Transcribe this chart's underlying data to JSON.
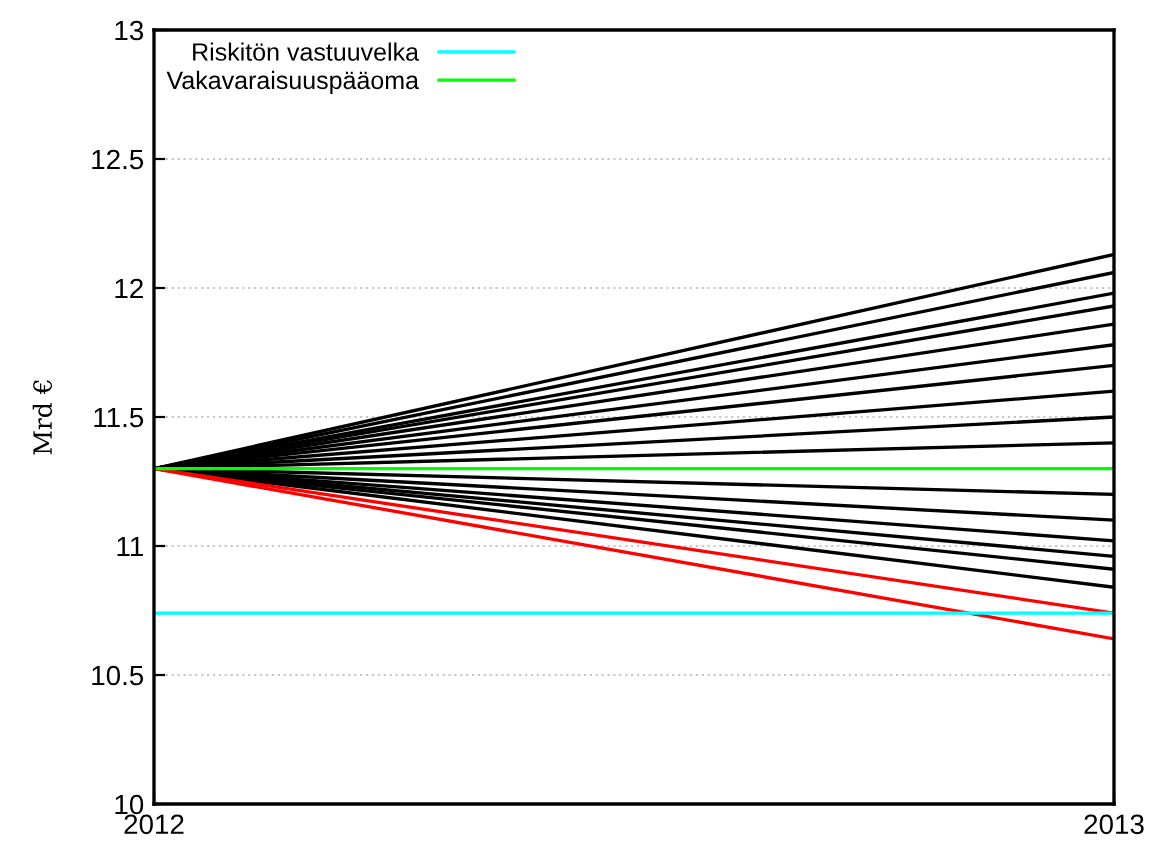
{
  "chart_data": {
    "type": "line",
    "ylabel": "Mrd €",
    "x": [
      2012,
      2013
    ],
    "xlim": [
      2012,
      2013
    ],
    "xticks": [
      2012,
      2013
    ],
    "ylim": [
      10,
      13
    ],
    "yticks": [
      10,
      10.5,
      11,
      11.5,
      12,
      12.5,
      13
    ],
    "grid": "y",
    "legend": "top left",
    "line_style": "solid",
    "marker": "none",
    "series": [
      {
        "color": "#000000",
        "values": [
          11.3,
          12.13
        ]
      },
      {
        "color": "#000000",
        "values": [
          11.3,
          12.06
        ]
      },
      {
        "color": "#000000",
        "values": [
          11.3,
          11.98
        ]
      },
      {
        "color": "#000000",
        "values": [
          11.3,
          11.93
        ]
      },
      {
        "color": "#000000",
        "values": [
          11.3,
          11.86
        ]
      },
      {
        "color": "#000000",
        "values": [
          11.3,
          11.78
        ]
      },
      {
        "color": "#000000",
        "values": [
          11.3,
          11.7
        ]
      },
      {
        "color": "#000000",
        "values": [
          11.3,
          11.6
        ]
      },
      {
        "color": "#000000",
        "values": [
          11.3,
          11.5
        ]
      },
      {
        "color": "#000000",
        "values": [
          11.3,
          11.4
        ]
      },
      {
        "color": "#000000",
        "values": [
          11.3,
          11.2
        ]
      },
      {
        "color": "#000000",
        "values": [
          11.3,
          11.1
        ]
      },
      {
        "color": "#000000",
        "values": [
          11.3,
          11.02
        ]
      },
      {
        "color": "#000000",
        "values": [
          11.3,
          10.96
        ]
      },
      {
        "color": "#000000",
        "values": [
          11.3,
          10.91
        ]
      },
      {
        "color": "#000000",
        "values": [
          11.3,
          10.84
        ]
      },
      {
        "color": "#ff0000",
        "values": [
          11.3,
          10.74
        ]
      },
      {
        "color": "#ff0000",
        "values": [
          11.3,
          10.64
        ]
      },
      {
        "name": "Riskitön vastuuvelka",
        "color": "#00ffff",
        "values": [
          10.74,
          10.74
        ]
      },
      {
        "name": "Vakavaraisuuspääoma",
        "color": "#00ff00",
        "values": [
          11.3,
          11.3
        ]
      }
    ]
  }
}
